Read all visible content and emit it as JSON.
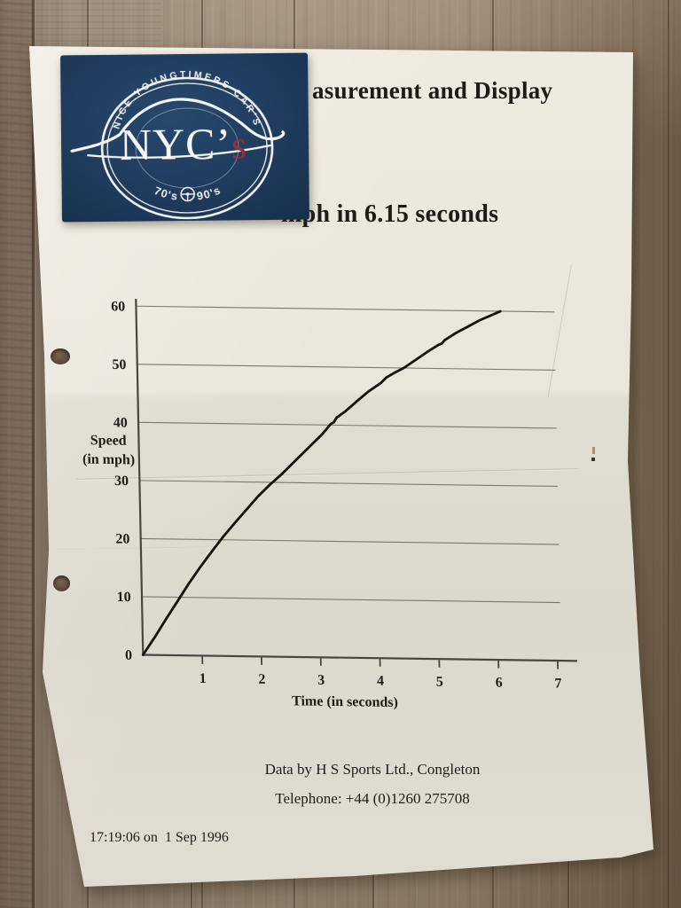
{
  "scene": {
    "background": "wood-table",
    "wood_color": "#8e7f6e",
    "paper_color": "#e9e5da"
  },
  "sticker": {
    "bg_color": "#1f3b5e",
    "ring_text": "NICE YOUNGTIMERS CAR'S",
    "brand_main": "NYC’",
    "brand_accent": "s",
    "brand_accent_color": "#9e2b3a",
    "era_left": "70's",
    "era_right": "90's",
    "era_icon": "steering-wheel"
  },
  "document": {
    "title_visible": "asurement and Display",
    "subtitle_visible": "mph in 6.15 seconds",
    "credit_line1": "Data by H S Sports Ltd., Congleton",
    "credit_line2": "Telephone: +44 (0)1260 275708",
    "timestamp": "17:19:06 on  1 Sep 1996"
  },
  "chart_data": {
    "type": "line",
    "title": "",
    "xlabel": "Time (in seconds)",
    "ylabel_lines": [
      "Speed",
      "(in mph)"
    ],
    "x_ticks": [
      1,
      2,
      3,
      4,
      5,
      6,
      7
    ],
    "y_ticks": [
      0,
      10,
      20,
      30,
      40,
      50,
      60
    ],
    "xlim": [
      0,
      7.35
    ],
    "ylim": [
      0,
      60
    ],
    "grid": "horizontal-only",
    "legend": "none",
    "line_color": "#17130f",
    "series": [
      {
        "name": "acceleration-run-0-60",
        "points": [
          [
            0,
            0
          ],
          [
            0.2,
            3
          ],
          [
            0.4,
            6.2
          ],
          [
            0.6,
            9.3
          ],
          [
            0.8,
            12.4
          ],
          [
            1.0,
            15.3
          ],
          [
            1.2,
            18.0
          ],
          [
            1.4,
            20.6
          ],
          [
            1.6,
            23.0
          ],
          [
            1.8,
            25.3
          ],
          [
            2.0,
            27.6
          ],
          [
            2.2,
            29.6
          ],
          [
            2.4,
            31.4
          ],
          [
            2.5,
            32.4
          ],
          [
            2.7,
            34.4
          ],
          [
            2.9,
            36.4
          ],
          [
            3.1,
            38.4
          ],
          [
            3.25,
            40.2
          ],
          [
            3.3,
            40.5
          ],
          [
            3.35,
            41.3
          ],
          [
            3.5,
            42.4
          ],
          [
            3.7,
            44.2
          ],
          [
            3.9,
            45.9
          ],
          [
            4.1,
            47.3
          ],
          [
            4.2,
            48.3
          ],
          [
            4.35,
            49.2
          ],
          [
            4.5,
            50.0
          ],
          [
            4.7,
            51.4
          ],
          [
            4.9,
            52.8
          ],
          [
            5.1,
            54.1
          ],
          [
            5.15,
            54.3
          ],
          [
            5.2,
            54.9
          ],
          [
            5.4,
            56.2
          ],
          [
            5.6,
            57.3
          ],
          [
            5.8,
            58.4
          ],
          [
            6.0,
            59.3
          ],
          [
            6.15,
            60
          ]
        ]
      }
    ]
  }
}
